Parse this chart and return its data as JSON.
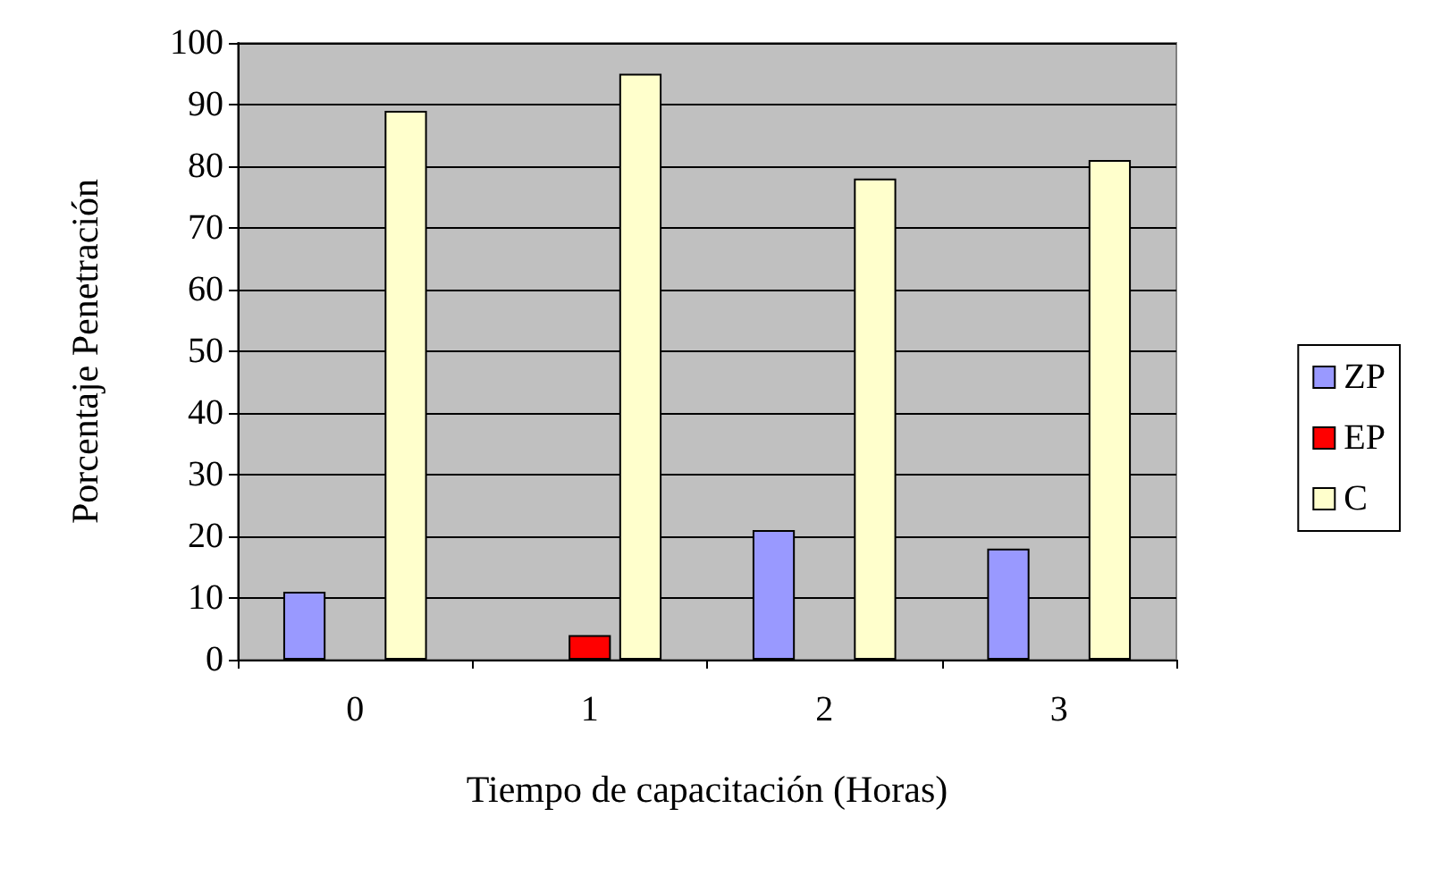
{
  "chart_data": {
    "type": "bar",
    "xlabel": "Tiempo de capacitación (Horas)",
    "ylabel": "Porcentaje Penetración",
    "categories": [
      "0",
      "1",
      "2",
      "3"
    ],
    "series": [
      {
        "name": "ZP",
        "color": "#9999ff",
        "values": [
          11,
          0,
          21,
          18
        ]
      },
      {
        "name": "EP",
        "color": "#ff0000",
        "values": [
          0,
          4,
          0,
          0
        ]
      },
      {
        "name": "C",
        "color": "#ffffcc",
        "values": [
          89,
          95,
          78,
          81
        ]
      }
    ],
    "ylim": [
      0,
      100
    ],
    "yticks": [
      0,
      10,
      20,
      30,
      40,
      50,
      60,
      70,
      80,
      90,
      100
    ],
    "grid": "y",
    "legend": "right"
  }
}
